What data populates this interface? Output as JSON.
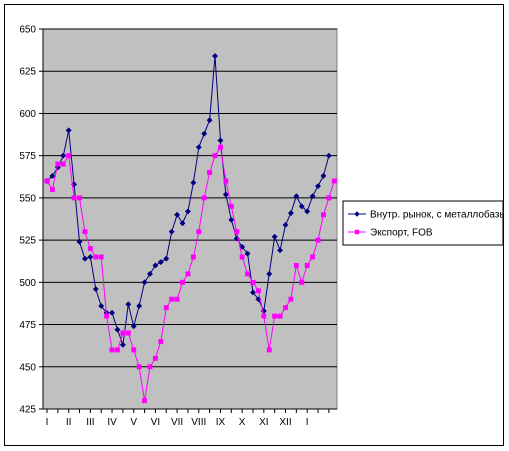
{
  "chart_data": {
    "type": "line",
    "ylim": [
      425,
      650
    ],
    "yticks": [
      425,
      450,
      475,
      500,
      525,
      550,
      575,
      600,
      625,
      650
    ],
    "grid": "horizontal",
    "plot_background": "#c0c0c0",
    "legend_position": "right",
    "x_major_labels": [
      "I",
      "II",
      "III",
      "IV",
      "V",
      "VI",
      "VII",
      "VIII",
      "IX",
      "X",
      "XI",
      "XII",
      "I"
    ],
    "x_major_index": [
      0,
      4,
      8,
      12,
      16,
      20,
      24,
      28,
      32,
      36,
      40,
      44,
      48
    ],
    "series": [
      {
        "name": "Внутр. рынок, с металлобазы",
        "color": "#000080",
        "marker": "diamond",
        "values": [
          560,
          563,
          568,
          575,
          590,
          558,
          524,
          514,
          515,
          496,
          486,
          482,
          482,
          472,
          463,
          487,
          474,
          486,
          500,
          505,
          510,
          512,
          514,
          530,
          540,
          535,
          542,
          559,
          580,
          588,
          596,
          634,
          584,
          552,
          537,
          526,
          521,
          517,
          494,
          490,
          483,
          505,
          527,
          519,
          534,
          541,
          551,
          545,
          542,
          551,
          557,
          563,
          575
        ]
      },
      {
        "name": "Экспорт, FOB",
        "color": "#ff00ff",
        "marker": "square",
        "values": [
          560,
          555,
          570,
          570,
          575,
          550,
          550,
          530,
          520,
          515,
          515,
          480,
          460,
          460,
          470,
          470,
          460,
          450,
          430,
          450,
          455,
          465,
          485,
          490,
          490,
          500,
          505,
          515,
          530,
          550,
          565,
          575,
          580,
          560,
          545,
          530,
          515,
          505,
          500,
          495,
          480,
          460,
          480,
          480,
          485,
          490,
          510,
          500,
          510,
          515,
          525,
          540,
          550,
          560
        ]
      }
    ]
  }
}
